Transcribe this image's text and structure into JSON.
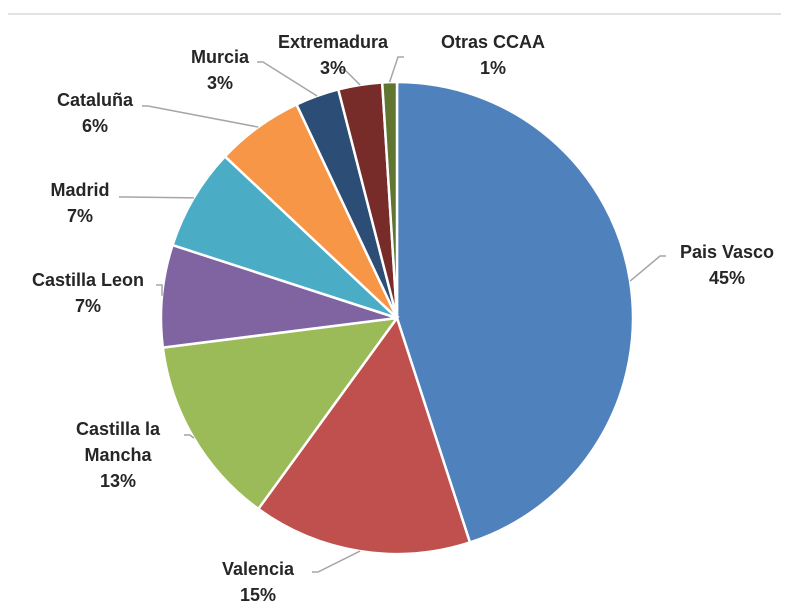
{
  "chart_data": {
    "type": "pie",
    "categories": [
      "Pais Vasco",
      "Valencia",
      "Castilla la Mancha",
      "Castilla Leon",
      "Madrid",
      "Cataluña",
      "Murcia",
      "Extremadura",
      "Otras CCAA"
    ],
    "values": [
      45,
      15,
      13,
      7,
      7,
      6,
      3,
      3,
      1
    ],
    "value_labels": [
      "45%",
      "15%",
      "13%",
      "7%",
      "7%",
      "6%",
      "3%",
      "3%",
      "1%"
    ],
    "colors": [
      "#4f81bd",
      "#c0504d",
      "#9bbb59",
      "#8064a2",
      "#4bacc6",
      "#f79646",
      "#2c4d75",
      "#772c2a",
      "#5f7530"
    ]
  }
}
